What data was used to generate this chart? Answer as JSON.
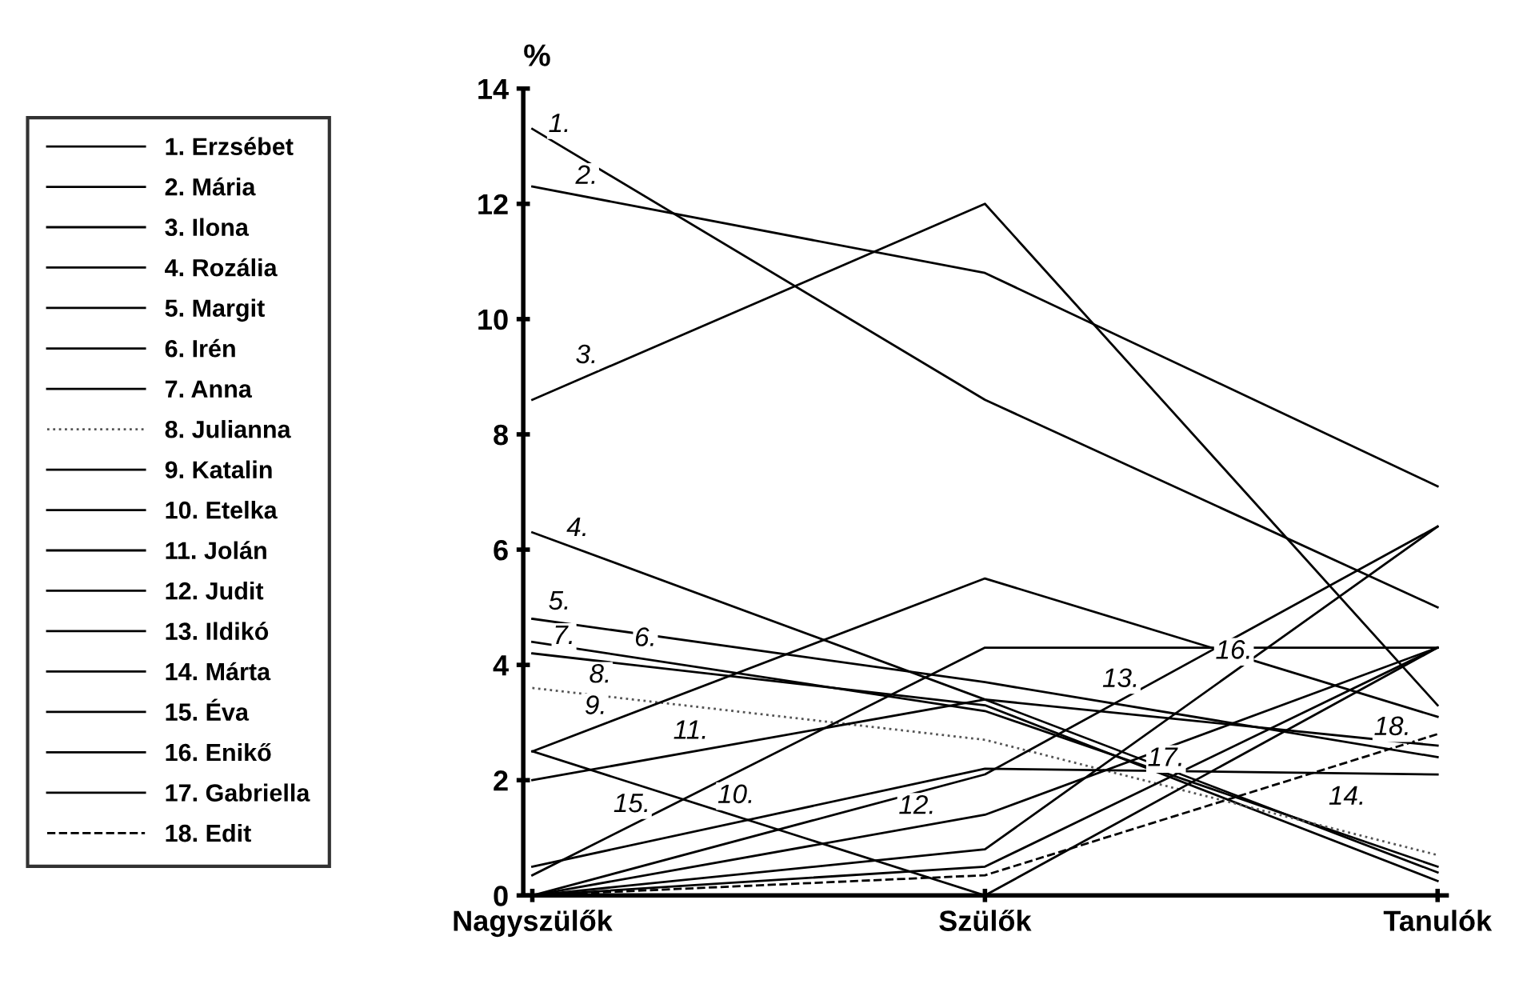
{
  "chart_data": {
    "type": "line",
    "ylabel": "%",
    "categories": [
      "Nagyszülők",
      "Szülők",
      "Tanulók"
    ],
    "ylim": [
      0,
      14
    ],
    "yticks": [
      0,
      2,
      4,
      6,
      8,
      10,
      12,
      14
    ],
    "grid": false,
    "legend": "left",
    "marker": "none",
    "series": [
      {
        "name": "1. Erzsébet",
        "color": "#000000",
        "values": [
          13.3,
          8.6,
          5.0
        ]
      },
      {
        "name": "2. Mária",
        "color": "#000000",
        "values": [
          12.3,
          10.8,
          7.1
        ]
      },
      {
        "name": "3. Ilona",
        "color": "#000000",
        "values": [
          8.6,
          12.0,
          3.3
        ]
      },
      {
        "name": "4. Rozália",
        "color": "#000000",
        "values": [
          6.3,
          3.4,
          0.4
        ]
      },
      {
        "name": "5. Margit",
        "color": "#000000",
        "values": [
          4.8,
          3.7,
          2.4
        ]
      },
      {
        "name": "6. Irén",
        "color": "#000000",
        "values": [
          4.4,
          3.2,
          0.5
        ]
      },
      {
        "name": "7. Anna",
        "color": "#000000",
        "values": [
          4.2,
          3.3,
          0.25
        ]
      },
      {
        "name": "8. Julianna",
        "color": "#555555",
        "line_style": "dotted",
        "values": [
          3.6,
          2.7,
          0.7
        ]
      },
      {
        "name": "9. Katalin",
        "color": "#000000",
        "values": [
          2.5,
          5.5,
          3.1
        ]
      },
      {
        "name": "10. Etelka",
        "color": "#000000",
        "values": [
          2.5,
          0.0,
          4.3
        ]
      },
      {
        "name": "11. Jolán",
        "color": "#000000",
        "values": [
          2.0,
          3.4,
          2.6
        ]
      },
      {
        "name": "12. Judit",
        "color": "#000000",
        "values": [
          0.0,
          1.4,
          4.3
        ]
      },
      {
        "name": "13. Ildikó",
        "color": "#000000",
        "values": [
          0.0,
          2.1,
          6.4
        ]
      },
      {
        "name": "14. Márta",
        "color": "#000000",
        "values": [
          0.5,
          2.2,
          2.1
        ]
      },
      {
        "name": "15. Éva",
        "color": "#000000",
        "values": [
          0.35,
          4.3,
          4.3
        ]
      },
      {
        "name": "16. Enikő",
        "color": "#000000",
        "values": [
          0.0,
          0.8,
          6.4
        ]
      },
      {
        "name": "17. Gabriella",
        "color": "#000000",
        "values": [
          0.0,
          0.5,
          4.3
        ]
      },
      {
        "name": "18. Edit",
        "color": "#000000",
        "line_style": "dashed",
        "values": [
          0.0,
          0.35,
          2.8
        ]
      }
    ],
    "annotations": [
      "1.",
      "2.",
      "3.",
      "4.",
      "5.",
      "6.",
      "7.",
      "8.",
      "9.",
      "10.",
      "11.",
      "12.",
      "13.",
      "14.",
      "15.",
      "16.",
      "17.",
      "18."
    ]
  }
}
